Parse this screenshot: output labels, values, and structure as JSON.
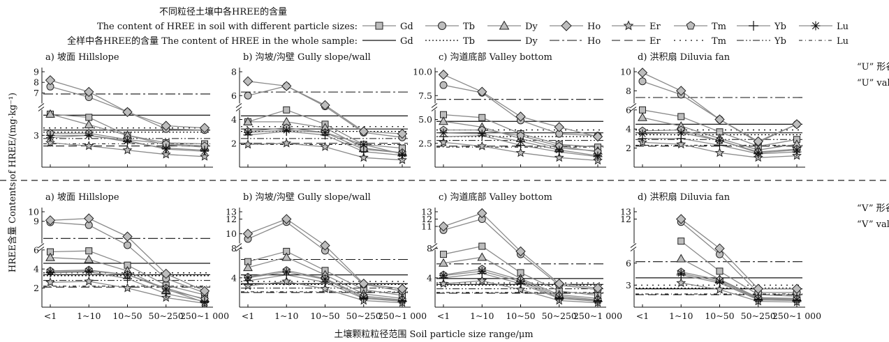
{
  "legend": {
    "title_cn": "不同粒径土壤中各HREE的含量",
    "row1_label": "The content of HREE in soil with different particle sizes:",
    "row2_label": "全样中各HREE的含量 The content of HREE in the whole sample:",
    "elements": [
      "Gd",
      "Tb",
      "Dy",
      "Ho",
      "Er",
      "Tm",
      "Yb",
      "Lu"
    ]
  },
  "y_axis_title": "HREE含量 Contents of HREE/(mg·kg⁻¹)",
  "x_axis_title": "土壤颗粒粒径范围 Soil particle size range/μm",
  "side_labels": {
    "top_cn": "“U” 形谷",
    "top_en": "“U” valley",
    "bottom_cn": "“V” 形谷",
    "bottom_en": "“V” valley"
  },
  "colors": {
    "series_line": "#8a8a8a",
    "marker_fill": "#bdbdbd",
    "axis": "#111111"
  },
  "chart_data": [
    {
      "type": "line",
      "panel": "U-a",
      "title": "a) 坡面 Hillslope",
      "categories": [
        "<1",
        "1~10",
        "10~50",
        "50~250",
        "250~1 000"
      ],
      "yticks": [
        "3",
        "7",
        "8",
        "9"
      ],
      "ylim": [
        0,
        9
      ],
      "series": [
        {
          "name": "Gd",
          "values": [
            5.0,
            4.7,
            3.0,
            2.3,
            2.2
          ]
        },
        {
          "name": "Tb",
          "values": [
            7.6,
            6.6,
            5.2,
            3.6,
            3.5
          ]
        },
        {
          "name": "Dy",
          "values": [
            5.0,
            4.0,
            3.0,
            2.1,
            1.9
          ]
        },
        {
          "name": "Ho",
          "values": [
            8.2,
            7.1,
            5.2,
            3.9,
            3.7
          ]
        },
        {
          "name": "Er",
          "values": [
            2.3,
            2.0,
            1.6,
            1.2,
            1.0
          ]
        },
        {
          "name": "Tm",
          "values": [
            3.2,
            3.2,
            2.6,
            2.2,
            2.0
          ]
        },
        {
          "name": "Yb",
          "values": [
            3.0,
            3.0,
            2.4,
            1.8,
            1.6
          ]
        },
        {
          "name": "Lu",
          "values": [
            2.8,
            3.0,
            2.5,
            1.7,
            1.5
          ]
        }
      ],
      "whole_sample": [
        {
          "name": "Gd",
          "value": 4.9
        },
        {
          "name": "Tb",
          "value": 3.3
        },
        {
          "name": "Dy",
          "value": 3.5
        },
        {
          "name": "Ho",
          "value": 6.9
        },
        {
          "name": "Er",
          "value": 2.0
        },
        {
          "name": "Tm",
          "value": 3.7
        },
        {
          "name": "Yb",
          "value": 2.7
        },
        {
          "name": "Lu",
          "value": 2.2
        }
      ]
    },
    {
      "type": "line",
      "panel": "U-b",
      "title": "b) 沟坡/沟壁 Gully slope/wall",
      "categories": [
        "<1",
        "1~10",
        "10~50",
        "50~250",
        "250~1 000"
      ],
      "yticks": [
        "2",
        "4",
        "6",
        "8"
      ],
      "ylim": [
        0,
        8
      ],
      "series": [
        {
          "name": "Gd",
          "values": [
            3.8,
            4.8,
            3.6,
            1.9,
            1.6
          ]
        },
        {
          "name": "Tb",
          "values": [
            6.0,
            6.8,
            5.1,
            2.9,
            2.5
          ]
        },
        {
          "name": "Dy",
          "values": [
            3.8,
            3.8,
            3.3,
            1.6,
            1.2
          ]
        },
        {
          "name": "Ho",
          "values": [
            7.2,
            6.8,
            5.2,
            3.0,
            2.8
          ]
        },
        {
          "name": "Er",
          "values": [
            1.9,
            2.0,
            1.7,
            0.8,
            0.6
          ]
        },
        {
          "name": "Tm",
          "values": [
            3.0,
            3.3,
            2.9,
            1.5,
            1.2
          ]
        },
        {
          "name": "Yb",
          "values": [
            2.7,
            3.0,
            2.7,
            1.3,
            1.0
          ]
        },
        {
          "name": "Lu",
          "values": [
            2.9,
            3.1,
            2.9,
            1.9,
            1.1
          ]
        }
      ],
      "whole_sample": [
        {
          "name": "Gd",
          "value": 4.3
        },
        {
          "name": "Tb",
          "value": 3.0
        },
        {
          "name": "Dy",
          "value": 3.2
        },
        {
          "name": "Ho",
          "value": 6.3
        },
        {
          "name": "Er",
          "value": 2.0
        },
        {
          "name": "Tm",
          "value": 3.4
        },
        {
          "name": "Yb",
          "value": 2.4
        },
        {
          "name": "Lu",
          "value": 1.9
        }
      ]
    },
    {
      "type": "line",
      "panel": "U-c",
      "title": "c) 沟道底部 Valley bottom",
      "categories": [
        "<1",
        "1~10",
        "10~50",
        "50~250",
        "250~1 000"
      ],
      "yticks": [
        "2.5",
        "5.0",
        "7.5",
        "10.0"
      ],
      "ylim": [
        0,
        10
      ],
      "series": [
        {
          "name": "Gd",
          "values": [
            5.5,
            5.2,
            3.5,
            2.4,
            2.1
          ]
        },
        {
          "name": "Tb",
          "values": [
            8.6,
            7.8,
            4.9,
            3.5,
            3.3
          ]
        },
        {
          "name": "Dy",
          "values": [
            4.8,
            4.2,
            3.0,
            2.0,
            1.7
          ]
        },
        {
          "name": "Ho",
          "values": [
            9.7,
            7.9,
            5.3,
            4.2,
            3.2
          ]
        },
        {
          "name": "Er",
          "values": [
            2.6,
            2.2,
            1.5,
            1.0,
            0.7
          ]
        },
        {
          "name": "Tm",
          "values": [
            3.9,
            3.9,
            3.3,
            2.2,
            1.6
          ]
        },
        {
          "name": "Yb",
          "values": [
            3.2,
            3.3,
            2.3,
            1.6,
            1.1
          ]
        },
        {
          "name": "Lu",
          "values": [
            3.6,
            3.5,
            2.7,
            1.8,
            1.2
          ]
        }
      ],
      "whole_sample": [
        {
          "name": "Gd",
          "value": 4.8
        },
        {
          "name": "Tb",
          "value": 3.2
        },
        {
          "name": "Dy",
          "value": 3.6
        },
        {
          "name": "Ho",
          "value": 7.1
        },
        {
          "name": "Er",
          "value": 2.2
        },
        {
          "name": "Tm",
          "value": 3.9
        },
        {
          "name": "Yb",
          "value": 2.8
        },
        {
          "name": "Lu",
          "value": 2.1
        }
      ]
    },
    {
      "type": "line",
      "panel": "U-d",
      "title": "d) 洪积扇 Diluvia fan",
      "categories": [
        "<1",
        "1~10",
        "10~50",
        "50~250",
        "250~1 000"
      ],
      "yticks": [
        "2",
        "4",
        "6",
        "8",
        "10"
      ],
      "ylim": [
        0,
        10
      ],
      "series": [
        {
          "name": "Gd",
          "values": [
            6.0,
            5.3,
            3.7,
            2.2,
            2.9
          ]
        },
        {
          "name": "Tb",
          "values": [
            9.0,
            7.6,
            5.0,
            2.6,
            4.5
          ]
        },
        {
          "name": "Dy",
          "values": [
            5.2,
            4.3,
            3.0,
            1.8,
            2.4
          ]
        },
        {
          "name": "Ho",
          "values": [
            9.9,
            8.0,
            5.0,
            2.7,
            4.5
          ]
        },
        {
          "name": "Er",
          "values": [
            2.6,
            2.4,
            1.5,
            1.0,
            1.2
          ]
        },
        {
          "name": "Tm",
          "values": [
            3.8,
            3.9,
            2.8,
            1.6,
            1.9
          ]
        },
        {
          "name": "Yb",
          "values": [
            3.0,
            3.0,
            2.3,
            1.4,
            1.6
          ]
        },
        {
          "name": "Lu",
          "values": [
            3.5,
            3.6,
            2.8,
            1.5,
            1.8
          ]
        }
      ],
      "whole_sample": [
        {
          "name": "Gd",
          "value": 4.5
        },
        {
          "name": "Tb",
          "value": 3.4
        },
        {
          "name": "Dy",
          "value": 3.6
        },
        {
          "name": "Ho",
          "value": 7.3
        },
        {
          "name": "Er",
          "value": 2.2
        },
        {
          "name": "Tm",
          "value": 3.9
        },
        {
          "name": "Yb",
          "value": 2.9
        },
        {
          "name": "Lu",
          "value": 2.3
        }
      ]
    },
    {
      "type": "line",
      "panel": "V-a",
      "title": "a) 坡面 Hillslope",
      "categories": [
        "<1",
        "1~10",
        "10~50",
        "50~250",
        "250~1 000"
      ],
      "yticks": [
        "2",
        "4",
        "6",
        "9",
        "10"
      ],
      "ylim": [
        0,
        10
      ],
      "series": [
        {
          "name": "Gd",
          "values": [
            5.8,
            5.9,
            4.4,
            2.3,
            1.3
          ]
        },
        {
          "name": "Tb",
          "values": [
            8.9,
            8.6,
            6.5,
            3.0,
            1.5
          ]
        },
        {
          "name": "Dy",
          "values": [
            5.2,
            5.0,
            3.8,
            1.8,
            0.9
          ]
        },
        {
          "name": "Ho",
          "values": [
            9.1,
            9.3,
            7.4,
            3.5,
            1.7
          ]
        },
        {
          "name": "Er",
          "values": [
            2.6,
            2.7,
            2.0,
            1.0,
            0.4
          ]
        },
        {
          "name": "Tm",
          "values": [
            3.8,
            3.9,
            3.4,
            2.0,
            0.8
          ]
        },
        {
          "name": "Yb",
          "values": [
            3.6,
            3.7,
            3.0,
            1.4,
            0.6
          ]
        },
        {
          "name": "Lu",
          "values": [
            3.7,
            3.8,
            3.4,
            1.9,
            0.5
          ]
        }
      ],
      "whole_sample": [
        {
          "name": "Gd",
          "value": 4.6
        },
        {
          "name": "Tb",
          "value": 3.3
        },
        {
          "name": "Dy",
          "value": 3.4
        },
        {
          "name": "Ho",
          "value": 7.2
        },
        {
          "name": "Er",
          "value": 2.1
        },
        {
          "name": "Tm",
          "value": 3.6
        },
        {
          "name": "Yb",
          "value": 2.8
        },
        {
          "name": "Lu",
          "value": 2.2
        }
      ]
    },
    {
      "type": "line",
      "panel": "V-b",
      "title": "b) 沟坡/沟壁 Gully slope/wall",
      "categories": [
        "<1",
        "1~10",
        "10~50",
        "50~250",
        "250~1 000"
      ],
      "yticks": [
        "4",
        "8",
        "10",
        "12",
        "13"
      ],
      "ylim": [
        0,
        13
      ],
      "series": [
        {
          "name": "Gd",
          "values": [
            6.2,
            7.6,
            5.0,
            2.4,
            1.6
          ]
        },
        {
          "name": "Tb",
          "values": [
            9.3,
            11.6,
            7.7,
            3.1,
            2.2
          ]
        },
        {
          "name": "Dy",
          "values": [
            5.4,
            6.8,
            4.4,
            1.8,
            1.2
          ]
        },
        {
          "name": "Ho",
          "values": [
            10.0,
            12.0,
            8.4,
            3.2,
            2.5
          ]
        },
        {
          "name": "Er",
          "values": [
            2.9,
            3.5,
            2.5,
            0.9,
            0.6
          ]
        },
        {
          "name": "Tm",
          "values": [
            4.1,
            5.0,
            3.9,
            1.5,
            1.0
          ]
        },
        {
          "name": "Yb",
          "values": [
            3.6,
            4.4,
            3.4,
            1.2,
            0.8
          ]
        },
        {
          "name": "Lu",
          "values": [
            4.0,
            4.8,
            3.8,
            1.3,
            0.9
          ]
        }
      ],
      "whole_sample": [
        {
          "name": "Gd",
          "value": 4.4
        },
        {
          "name": "Tb",
          "value": 3.1
        },
        {
          "name": "Dy",
          "value": 3.2
        },
        {
          "name": "Ho",
          "value": 6.5
        },
        {
          "name": "Er",
          "value": 2.0
        },
        {
          "name": "Tm",
          "value": 3.5
        },
        {
          "name": "Yb",
          "value": 2.6
        },
        {
          "name": "Lu",
          "value": 2.1
        }
      ]
    },
    {
      "type": "line",
      "panel": "V-c",
      "title": "c) 沟道底部 Valley bottom",
      "categories": [
        "<1",
        "1~10",
        "10~50",
        "50~250",
        "250~1 000"
      ],
      "yticks": [
        "4",
        "8",
        "11",
        "12",
        "13"
      ],
      "ylim": [
        0,
        13
      ],
      "series": [
        {
          "name": "Gd",
          "values": [
            7.2,
            8.3,
            4.7,
            2.2,
            1.6
          ]
        },
        {
          "name": "Tb",
          "values": [
            10.5,
            12.0,
            7.2,
            3.0,
            2.4
          ]
        },
        {
          "name": "Dy",
          "values": [
            6.0,
            6.8,
            3.9,
            1.7,
            1.2
          ]
        },
        {
          "name": "Ho",
          "values": [
            11.0,
            12.8,
            7.6,
            3.2,
            2.6
          ]
        },
        {
          "name": "Er",
          "values": [
            3.2,
            3.6,
            2.4,
            0.9,
            0.6
          ]
        },
        {
          "name": "Tm",
          "values": [
            4.4,
            5.2,
            3.7,
            1.5,
            1.0
          ]
        },
        {
          "name": "Yb",
          "values": [
            4.0,
            4.6,
            3.2,
            1.2,
            0.8
          ]
        },
        {
          "name": "Lu",
          "values": [
            4.3,
            4.9,
            3.5,
            1.3,
            0.9
          ]
        }
      ],
      "whole_sample": [
        {
          "name": "Gd",
          "value": 3.9
        },
        {
          "name": "Tb",
          "value": 3.0
        },
        {
          "name": "Dy",
          "value": 3.1
        },
        {
          "name": "Ho",
          "value": 5.9
        },
        {
          "name": "Er",
          "value": 1.9
        },
        {
          "name": "Tm",
          "value": 3.3
        },
        {
          "name": "Yb",
          "value": 2.5
        },
        {
          "name": "Lu",
          "value": 2.0
        }
      ]
    },
    {
      "type": "line",
      "panel": "V-d",
      "title": "d) 洪积扇 Diluvia fan",
      "categories": [
        "<1",
        "1~10",
        "10~50",
        "50~250",
        "250~1 000"
      ],
      "yticks": [
        "3",
        "6",
        "12",
        "13"
      ],
      "ylim": [
        0,
        13
      ],
      "series": [
        {
          "name": "Gd",
          "values": [
            null,
            9.0,
            4.9,
            1.7,
            1.5
          ]
        },
        {
          "name": "Tb",
          "values": [
            null,
            11.6,
            7.2,
            2.0,
            2.0
          ]
        },
        {
          "name": "Dy",
          "values": [
            null,
            6.6,
            3.8,
            1.3,
            1.2
          ]
        },
        {
          "name": "Ho",
          "values": [
            null,
            12.0,
            8.0,
            2.5,
            2.5
          ]
        },
        {
          "name": "Er",
          "values": [
            null,
            3.3,
            2.4,
            0.8,
            0.7
          ]
        },
        {
          "name": "Tm",
          "values": [
            null,
            4.8,
            3.7,
            1.2,
            1.1
          ]
        },
        {
          "name": "Yb",
          "values": [
            null,
            4.4,
            3.3,
            1.0,
            0.9
          ]
        },
        {
          "name": "Lu",
          "values": [
            null,
            4.6,
            3.5,
            1.1,
            1.0
          ]
        }
      ],
      "whole_sample": [
        {
          "name": "Gd",
          "value": 4.0
        },
        {
          "name": "Tb",
          "value": 2.6
        },
        {
          "name": "Dy",
          "value": 2.5
        },
        {
          "name": "Ho",
          "value": 6.2
        },
        {
          "name": "Er",
          "value": 1.7
        },
        {
          "name": "Tm",
          "value": 3.0
        },
        {
          "name": "Yb",
          "value": 2.5
        },
        {
          "name": "Lu",
          "value": 1.8
        }
      ]
    }
  ]
}
